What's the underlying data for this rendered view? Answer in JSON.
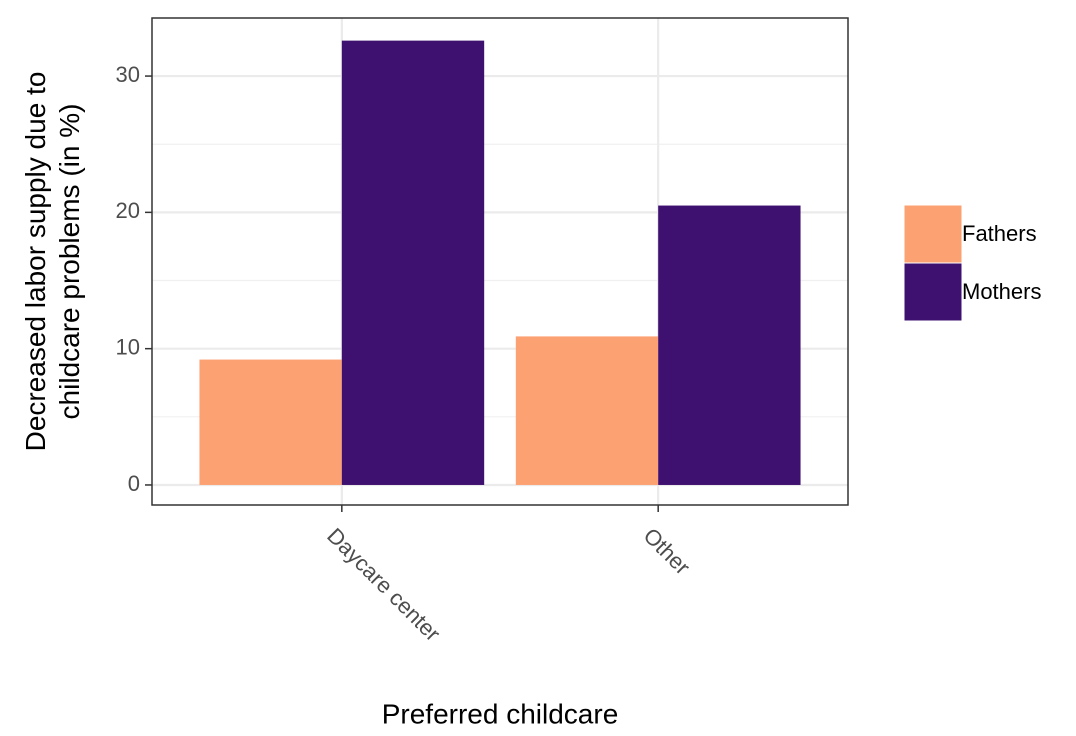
{
  "chart_data": {
    "type": "bar",
    "xlabel": "Preferred childcare",
    "ylabel": [
      "Decreased labor supply due to",
      "childcare problems (in %)"
    ],
    "categories": [
      "Daycare center",
      "Other"
    ],
    "series": [
      {
        "name": "Fathers",
        "color": "#fca172",
        "values": [
          9.2,
          10.9
        ]
      },
      {
        "name": "Mothers",
        "color": "#3e106f",
        "values": [
          32.6,
          20.5
        ]
      }
    ],
    "ylim": [
      -1.47,
      34.26
    ],
    "yticks": [
      0,
      10,
      20,
      30
    ],
    "yminorticks": [
      5,
      15,
      25
    ],
    "grid": true,
    "legend": "right"
  }
}
